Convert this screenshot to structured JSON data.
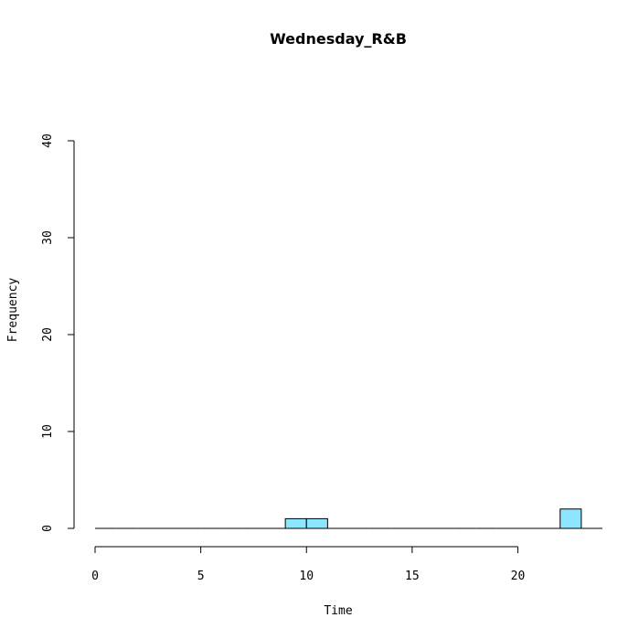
{
  "chart_data": {
    "type": "bar",
    "title": "Wednesday_R&B",
    "xlabel": "Time",
    "ylabel": "Frequency",
    "xlim": [
      0,
      24
    ],
    "ylim": [
      0,
      40
    ],
    "x_ticks": [
      0,
      5,
      10,
      15,
      20
    ],
    "y_ticks": [
      0,
      10,
      20,
      30,
      40
    ],
    "bin_width": 1,
    "bins": [
      {
        "start": 0,
        "end": 1,
        "count": 0
      },
      {
        "start": 1,
        "end": 2,
        "count": 0
      },
      {
        "start": 2,
        "end": 3,
        "count": 0
      },
      {
        "start": 3,
        "end": 4,
        "count": 0
      },
      {
        "start": 4,
        "end": 5,
        "count": 0
      },
      {
        "start": 5,
        "end": 6,
        "count": 0
      },
      {
        "start": 6,
        "end": 7,
        "count": 0
      },
      {
        "start": 7,
        "end": 8,
        "count": 0
      },
      {
        "start": 8,
        "end": 9,
        "count": 0
      },
      {
        "start": 9,
        "end": 10,
        "count": 1
      },
      {
        "start": 10,
        "end": 11,
        "count": 1
      },
      {
        "start": 11,
        "end": 12,
        "count": 0
      },
      {
        "start": 12,
        "end": 13,
        "count": 0
      },
      {
        "start": 13,
        "end": 14,
        "count": 0
      },
      {
        "start": 14,
        "end": 15,
        "count": 0
      },
      {
        "start": 15,
        "end": 16,
        "count": 0
      },
      {
        "start": 16,
        "end": 17,
        "count": 0
      },
      {
        "start": 17,
        "end": 18,
        "count": 0
      },
      {
        "start": 18,
        "end": 19,
        "count": 0
      },
      {
        "start": 19,
        "end": 20,
        "count": 0
      },
      {
        "start": 20,
        "end": 21,
        "count": 0
      },
      {
        "start": 21,
        "end": 22,
        "count": 0
      },
      {
        "start": 22,
        "end": 23,
        "count": 2
      },
      {
        "start": 23,
        "end": 24,
        "count": 0
      }
    ],
    "bar_color": "#8ee5ff",
    "border_color": "#000000",
    "grid": false
  }
}
